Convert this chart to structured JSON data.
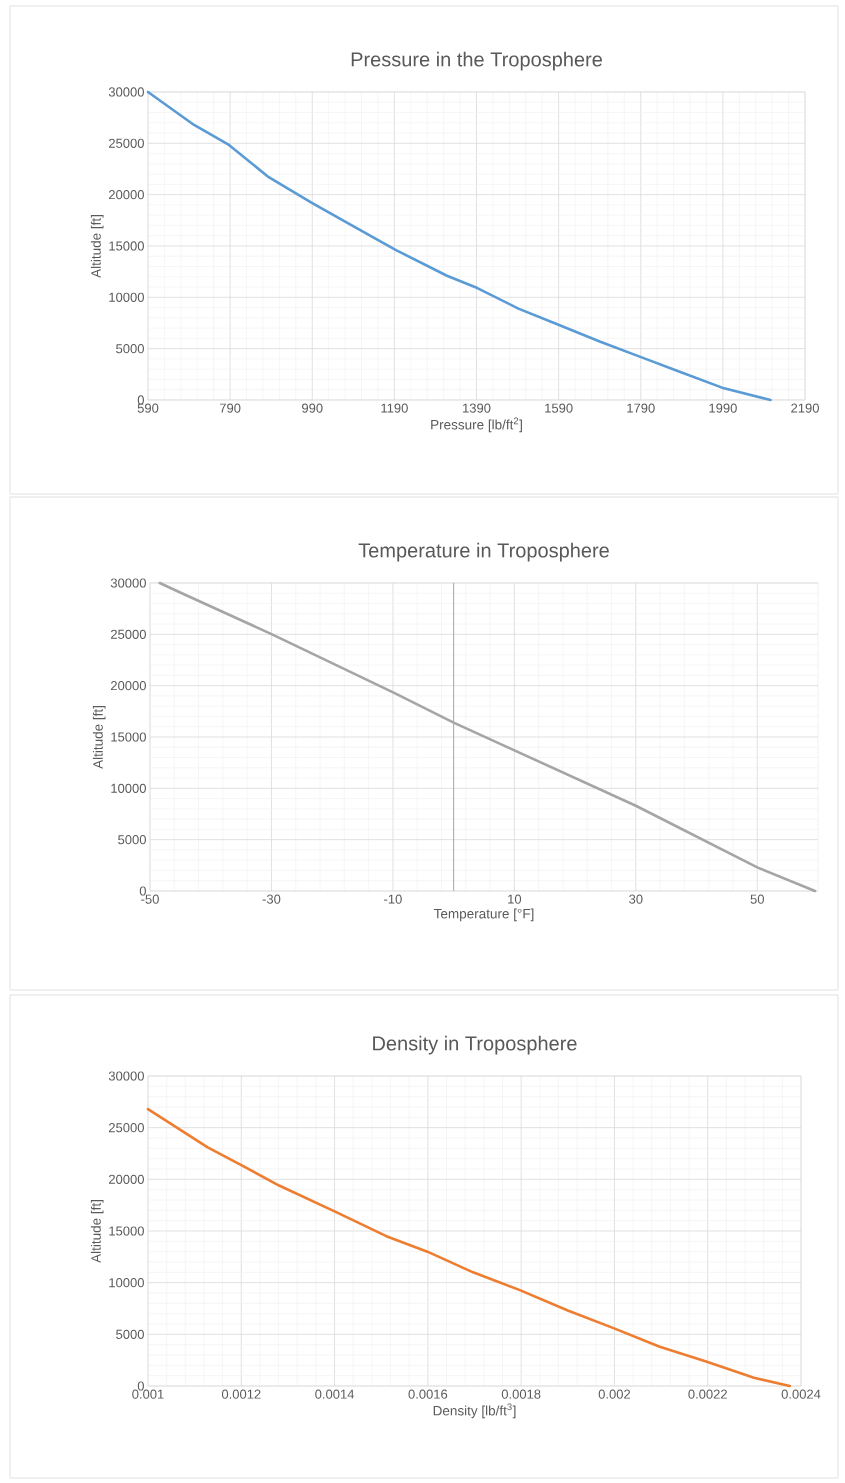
{
  "chart_data": [
    {
      "type": "line",
      "title": "Pressure in the Troposphere",
      "xlabel": "Pressure [lb/ft$^{2}$]",
      "ylabel": "Altitude [ft]",
      "xlim": [
        590,
        2190
      ],
      "ylim": [
        0,
        30000
      ],
      "xticks": [
        590,
        790,
        990,
        1190,
        1390,
        1590,
        1790,
        1990,
        2190
      ],
      "yticks": [
        0,
        5000,
        10000,
        15000,
        20000,
        25000,
        30000
      ],
      "grid": true,
      "series": [
        {
          "color": "#5b9bd5",
          "x": [
            590,
            698,
            785,
            884,
            989,
            1095,
            1194,
            1318,
            1392,
            1492,
            1585,
            1690,
            1789,
            1888,
            1988,
            2106
          ],
          "values": [
            30000,
            26900,
            24900,
            21700,
            19200,
            16800,
            14600,
            12100,
            10900,
            8900,
            7400,
            5700,
            4200,
            2700,
            1200,
            0
          ]
        }
      ]
    },
    {
      "type": "line",
      "title": "Temperature in Troposphere",
      "xlabel": "Temperature  [°F]",
      "ylabel": "Altitude [ft]",
      "xlim": [
        -50,
        60
      ],
      "ylim": [
        0,
        30000
      ],
      "xticks": [
        -50,
        -30,
        -10,
        10,
        30,
        50
      ],
      "yticks": [
        0,
        5000,
        10000,
        15000,
        20000,
        25000,
        30000
      ],
      "grid": true,
      "ref_lines": [
        {
          "axis": "x",
          "value": 0,
          "color": "#a6a6a6"
        }
      ],
      "series": [
        {
          "color": "#a5a5a5",
          "x": [
            -48.4,
            -44.4,
            -29.9,
            -9.8,
            0,
            10,
            30,
            50,
            59.5
          ],
          "values": [
            30000,
            28900,
            25000,
            19300,
            16400,
            13700,
            8300,
            2300,
            0
          ]
        }
      ]
    },
    {
      "type": "line",
      "title": "Density in Troposphere",
      "xlabel": "Density  [lb/ft$^{3}$]",
      "ylabel": "Altitude [ft]",
      "xlim": [
        0.001,
        0.0024
      ],
      "ylim": [
        0,
        30000
      ],
      "xticks": [
        0.001,
        0.0012,
        0.0014,
        0.0016,
        0.0018,
        0.002,
        0.0022,
        0.0024
      ],
      "yticks": [
        0,
        5000,
        10000,
        15000,
        20000,
        25000,
        30000
      ],
      "grid": true,
      "series": [
        {
          "color": "#ed7d31",
          "x": [
            0.001,
            0.001128,
            0.001199,
            0.001281,
            0.0014,
            0.001511,
            0.001599,
            0.001697,
            0.001796,
            0.0019,
            0.001998,
            0.002097,
            0.002195,
            0.002299,
            0.002376
          ],
          "values": [
            26800,
            23100,
            21400,
            19400,
            16900,
            14500,
            13000,
            11000,
            9300,
            7300,
            5600,
            3800,
            2400,
            800,
            0
          ]
        }
      ]
    }
  ]
}
